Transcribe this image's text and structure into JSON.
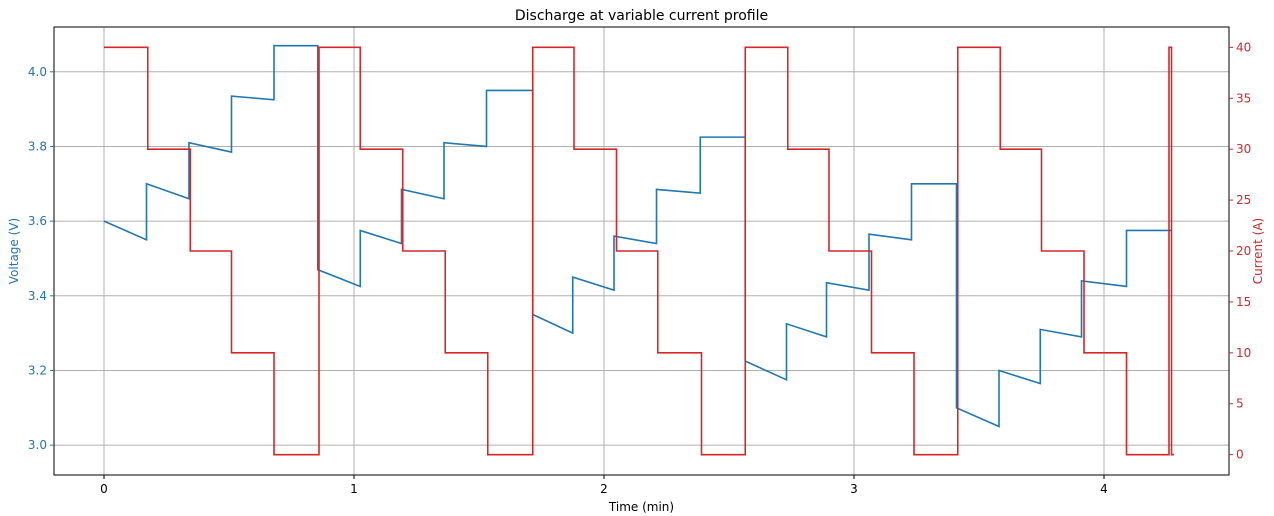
{
  "chart_data": {
    "type": "line",
    "title": "Discharge at variable current profile",
    "xlabel": "Time (min)",
    "ylabel_left": "Voltage (V)",
    "ylabel_right": "Current (A)",
    "xlim": [
      -0.2,
      4.5
    ],
    "ylim_left": [
      2.92,
      4.12
    ],
    "ylim_right": [
      -2,
      42
    ],
    "xticks": [
      "0",
      "1",
      "2",
      "3",
      "4"
    ],
    "xtick_values": [
      0,
      1,
      2,
      3,
      4
    ],
    "yticks_left": [
      "3.0",
      "3.2",
      "3.4",
      "3.6",
      "3.8",
      "4.0"
    ],
    "ytick_left_values": [
      3.0,
      3.2,
      3.4,
      3.6,
      3.8,
      4.0
    ],
    "yticks_right": [
      "0",
      "5",
      "10",
      "15",
      "20",
      "25",
      "30",
      "35",
      "40"
    ],
    "ytick_right_values": [
      0,
      5,
      10,
      15,
      20,
      25,
      30,
      35,
      40
    ],
    "grid": true,
    "colors": {
      "voltage": "#1f77b4",
      "current": "#d62728",
      "grid": "#b0b0b0"
    },
    "series": [
      {
        "axis": "left",
        "x": [
          0,
          0.17,
          0.17,
          0.34,
          0.34,
          0.51,
          0.51,
          0.68,
          0.68,
          0.855,
          0.855,
          1.025,
          1.025,
          1.19,
          1.19,
          1.36,
          1.36,
          1.53,
          1.53,
          1.715,
          1.715,
          1.875,
          1.875,
          2.04,
          2.04,
          2.21,
          2.21,
          2.385,
          2.385,
          2.565,
          2.565,
          2.73,
          2.73,
          2.89,
          2.89,
          3.06,
          3.06,
          3.23,
          3.23,
          3.41,
          3.41,
          3.58,
          3.58,
          3.745,
          3.745,
          3.91,
          3.91,
          4.09,
          4.09,
          4.27
        ],
        "values": [
          3.6,
          3.55,
          3.7,
          3.66,
          3.81,
          3.785,
          3.935,
          3.925,
          4.07,
          4.07,
          3.47,
          3.425,
          3.575,
          3.54,
          3.685,
          3.66,
          3.81,
          3.8,
          3.95,
          3.95,
          3.35,
          3.3,
          3.45,
          3.415,
          3.56,
          3.54,
          3.685,
          3.675,
          3.825,
          3.825,
          3.225,
          3.175,
          3.325,
          3.29,
          3.435,
          3.415,
          3.565,
          3.55,
          3.7,
          3.7,
          3.1,
          3.05,
          3.2,
          3.165,
          3.31,
          3.29,
          3.44,
          3.425,
          3.575,
          3.575
        ]
      },
      {
        "axis": "right",
        "x": [
          0,
          0.175,
          0.175,
          0.345,
          0.345,
          0.51,
          0.51,
          0.68,
          0.68,
          0.86,
          0.86,
          1.025,
          1.025,
          1.195,
          1.195,
          1.365,
          1.365,
          1.535,
          1.535,
          1.715,
          1.715,
          1.88,
          1.88,
          2.05,
          2.05,
          2.215,
          2.215,
          2.39,
          2.39,
          2.565,
          2.565,
          2.735,
          2.735,
          2.9,
          2.9,
          3.07,
          3.07,
          3.24,
          3.24,
          3.415,
          3.415,
          3.585,
          3.585,
          3.75,
          3.75,
          3.92,
          3.92,
          4.09,
          4.09,
          4.26,
          4.26,
          4.27,
          4.27,
          4.28
        ],
        "values": [
          40,
          40,
          30,
          30,
          20,
          20,
          10,
          10,
          0,
          0,
          40,
          40,
          30,
          30,
          20,
          20,
          10,
          10,
          0,
          0,
          40,
          40,
          30,
          30,
          20,
          20,
          10,
          10,
          0,
          0,
          40,
          40,
          30,
          30,
          20,
          20,
          10,
          10,
          0,
          0,
          40,
          40,
          30,
          30,
          20,
          20,
          10,
          10,
          0,
          0,
          40,
          40,
          0,
          0
        ]
      }
    ]
  }
}
